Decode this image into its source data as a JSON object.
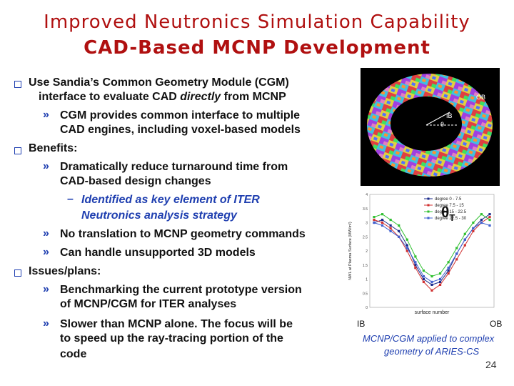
{
  "title": {
    "line1": "Improved Neutronics Simulation Capability",
    "line2": "CAD-Based MCNP Development"
  },
  "bullets": {
    "b1": {
      "line1": "Use Sandia’s Common Geometry Module (CGM)",
      "line2a": "interface to evaluate CAD ",
      "line2b": "directly",
      "line2c": " from MCNP",
      "sub1_line1": "CGM provides common interface to multiple",
      "sub1_line2": "CAD engines, including voxel-based models"
    },
    "b2": {
      "line1": "Benefits:",
      "sub1_line1": "Dramatically reduce turnaround time from",
      "sub1_line2": "CAD-based design changes",
      "subsub_line1": "Identified as key element of ITER",
      "subsub_line2": "Neutronics analysis strategy",
      "sub2": "No translation to MCNP geometry commands",
      "sub3": "Can handle unsupported 3D models"
    },
    "b3": {
      "line1": "Issues/plans:",
      "sub1_line1": "Benchmarking the current prototype version",
      "sub1_line2": "of MCNP/CGM for ITER analyses",
      "sub2_line1": "Slower than MCNP alone.  The focus will be",
      "sub2_line2": "to speed up the ray-tracing portion of the",
      "sub2_line3": "code"
    }
  },
  "figure": {
    "torus_labels": {
      "ob": "OB",
      "ib": "IB",
      "theta": "θ"
    },
    "theta_label": "θ",
    "theta_sub": "T",
    "ib_label": "IB",
    "ob_label": "OB",
    "caption_line1": "MCNP/CGM applied to complex",
    "caption_line2": "geometry of ARIES-CS"
  },
  "page_number": "24",
  "chart_data": {
    "type": "line",
    "title": "",
    "xlabel": "surface number",
    "ylabel": "NWL at Plasma Surface (MW/m²)",
    "ylim": [
      0,
      4
    ],
    "legend_position": "top-right",
    "yticks": [
      "4",
      "3.5",
      "3",
      "2.5",
      "2",
      "1.5",
      "1",
      "0.5",
      "0"
    ],
    "series": [
      {
        "name": "degree 0 - 7.5",
        "color": "#1a2a8a",
        "values": [
          3.0,
          3.1,
          2.9,
          2.7,
          2.2,
          1.5,
          1.0,
          0.8,
          0.9,
          1.3,
          1.9,
          2.4,
          2.8,
          3.1,
          3.3
        ]
      },
      {
        "name": "degree 7.5 - 15",
        "color": "#d03030",
        "values": [
          3.1,
          3.0,
          2.8,
          2.5,
          2.0,
          1.4,
          0.9,
          0.6,
          0.8,
          1.2,
          1.7,
          2.2,
          2.7,
          3.0,
          3.2
        ]
      },
      {
        "name": "degree 15 - 22.5",
        "color": "#30c030",
        "values": [
          3.2,
          3.3,
          3.1,
          2.9,
          2.4,
          1.8,
          1.3,
          1.1,
          1.2,
          1.6,
          2.1,
          2.6,
          3.0,
          3.3,
          3.1
        ]
      },
      {
        "name": "degree 22.5 - 30",
        "color": "#4060d0",
        "values": [
          3.0,
          2.9,
          2.7,
          2.5,
          2.1,
          1.6,
          1.1,
          0.9,
          1.0,
          1.4,
          1.9,
          2.4,
          2.8,
          3.0,
          2.9
        ]
      }
    ]
  }
}
